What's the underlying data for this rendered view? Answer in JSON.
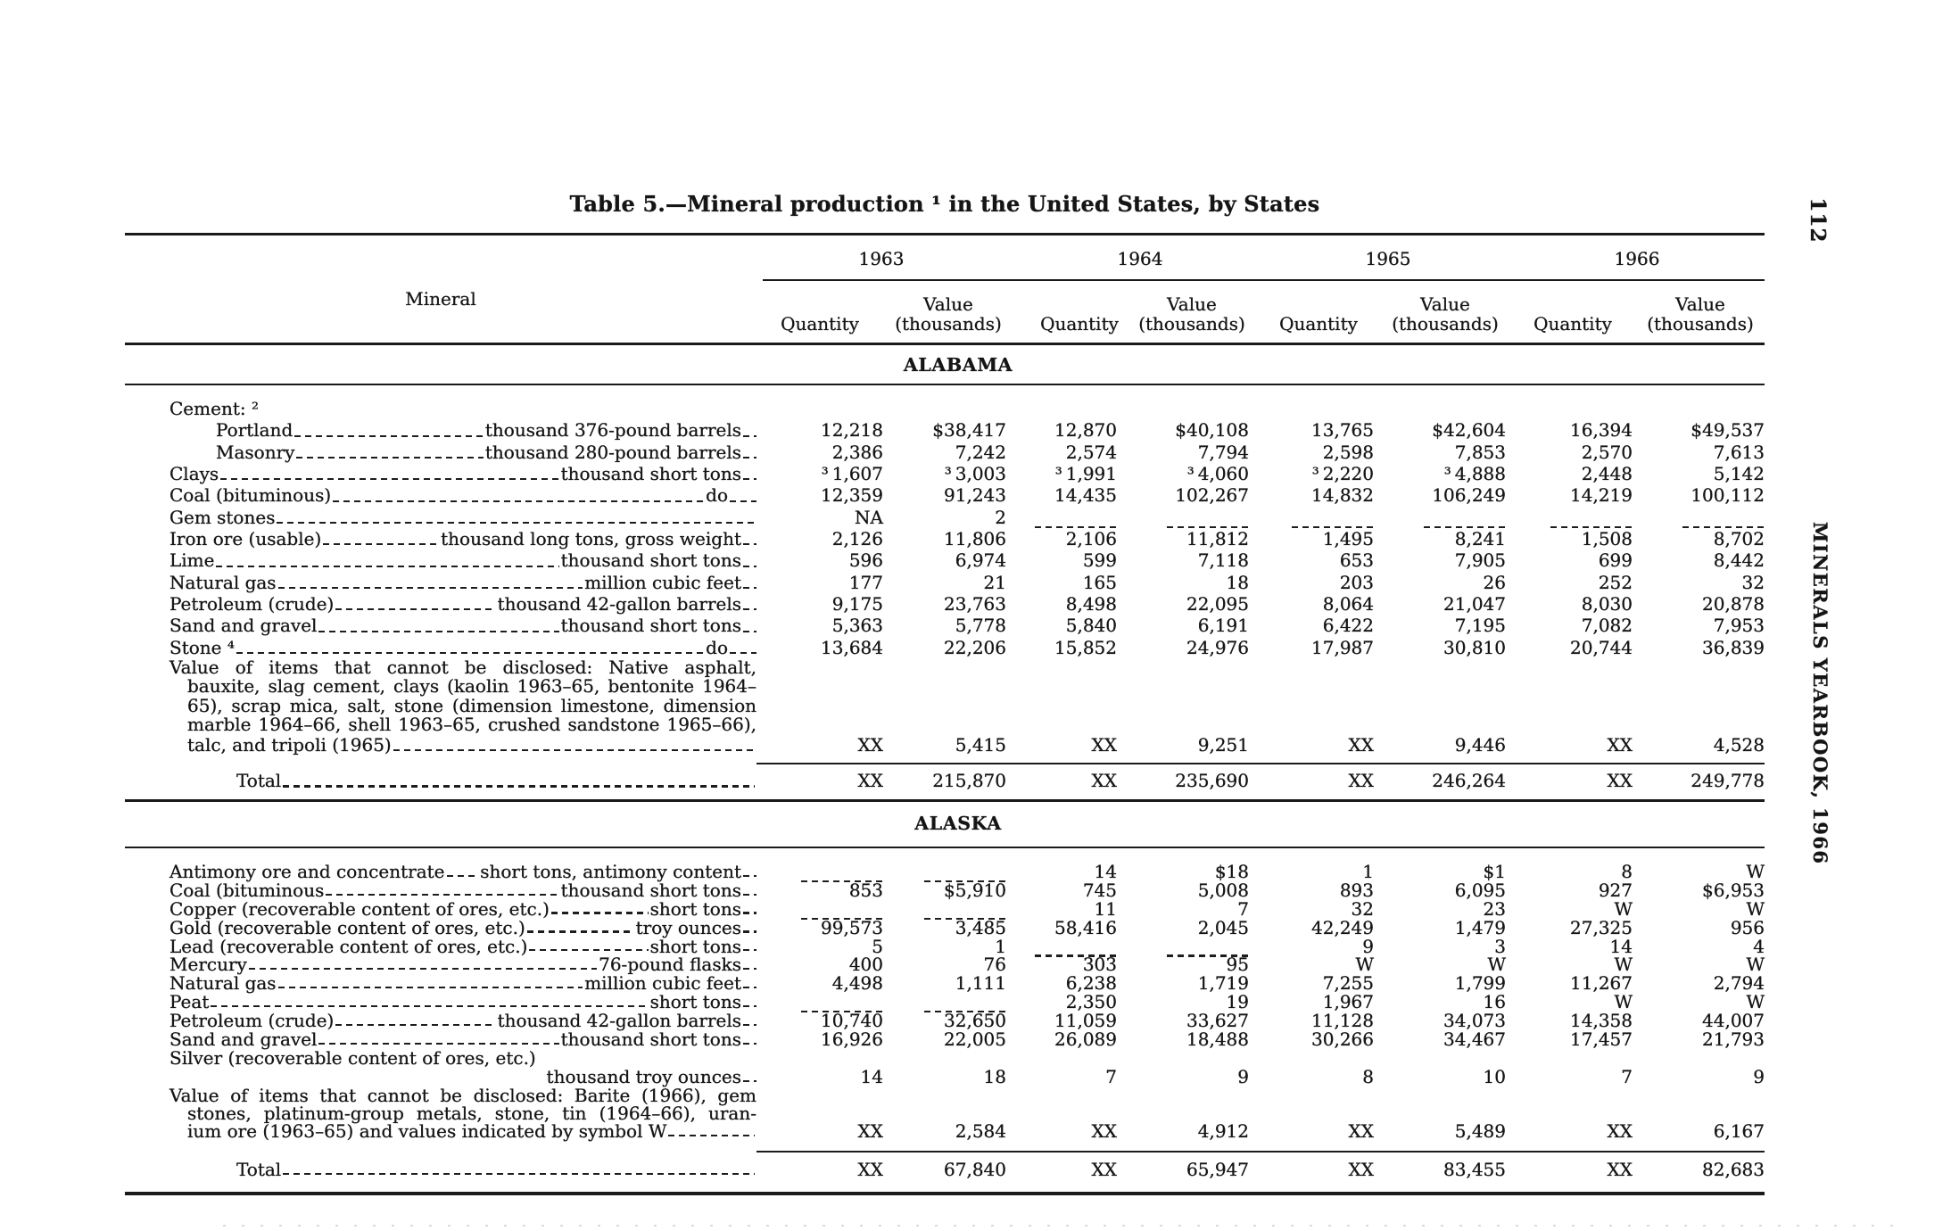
{
  "page": {
    "title": "Table 5.—Mineral production ¹ in the United States, by States",
    "page_number": "112",
    "running_footer": "MINERALS YEARBOOK, 1966"
  },
  "table": {
    "stub_header": "Mineral",
    "years": [
      "1963",
      "1964",
      "1965",
      "1966"
    ],
    "quantity_header": "Quantity",
    "value_header_line1": "Value",
    "value_header_line2": "(thousands)",
    "sections": [
      {
        "name": "ALABAMA",
        "rows": [
          {
            "label": "Cement: ²",
            "leader": "none"
          },
          {
            "label": "Portland",
            "indent": 52,
            "unit": "thousand 376-pound barrels",
            "tail": "..",
            "cells": [
              "12,218",
              "$38,417",
              "12,870",
              "$40,108",
              "13,765",
              "$42,604",
              "16,394",
              "$49,537"
            ]
          },
          {
            "label": "Masonry",
            "indent": 52,
            "unit": "thousand 280-pound barrels",
            "tail": "..",
            "cells": [
              "2,386",
              "7,242",
              "2,574",
              "7,794",
              "2,598",
              "7,853",
              "2,570",
              "7,613"
            ]
          },
          {
            "label": "Clays",
            "unit": "thousand short tons",
            "tail": "..",
            "cells": [
              "³ 1,607",
              "³ 3,003",
              "³ 1,991",
              "³ 4,060",
              "³ 2,220",
              "³ 4,888",
              "2,448",
              "5,142"
            ]
          },
          {
            "label": "Coal (bituminous)",
            "unit": "do",
            "tail": "----",
            "cells": [
              "12,359",
              "91,243",
              "14,435",
              "102,267",
              "14,832",
              "106,249",
              "14,219",
              "100,112"
            ]
          },
          {
            "label": "Gem stones",
            "cells": [
              "NA",
              "2",
              "----------",
              "----------",
              "----------",
              "----------",
              "----------",
              "----------"
            ]
          },
          {
            "label": "Iron ore (usable)",
            "unit": "thousand long tons, gross weight",
            "tail": "..",
            "cells": [
              "2,126",
              "11,806",
              "2,106",
              "11,812",
              "1,495",
              "8,241",
              "1,508",
              "8,702"
            ]
          },
          {
            "label": "Lime",
            "unit": "thousand short tons",
            "tail": "..",
            "cells": [
              "596",
              "6,974",
              "599",
              "7,118",
              "653",
              "7,905",
              "699",
              "8,442"
            ]
          },
          {
            "label": "Natural gas",
            "unit": "million cubic feet",
            "tail": "..",
            "cells": [
              "177",
              "21",
              "165",
              "18",
              "203",
              "26",
              "252",
              "32"
            ]
          },
          {
            "label": "Petroleum (crude)",
            "unit": "thousand 42-gallon barrels",
            "tail": "..",
            "cells": [
              "9,175",
              "23,763",
              "8,498",
              "22,095",
              "8,064",
              "21,047",
              "8,030",
              "20,878"
            ]
          },
          {
            "label": "Sand and gravel",
            "unit": "thousand short tons",
            "tail": "..",
            "cells": [
              "5,363",
              "5,778",
              "5,840",
              "6,191",
              "6,422",
              "7,195",
              "7,082",
              "7,953"
            ]
          },
          {
            "label": "Stone ⁴",
            "unit": "do",
            "tail": "----",
            "cells": [
              "13,684",
              "22,206",
              "15,852",
              "24,976",
              "17,987",
              "30,810",
              "20,744",
              "36,839"
            ]
          },
          {
            "kind": "line",
            "justify": true,
            "label": "Value of items that cannot be disclosed: Native asphalt,"
          },
          {
            "kind": "line",
            "justify": true,
            "indent": 20,
            "label": "bauxite, slag cement, clays (kaolin 1963–65, bentonite 1964–"
          },
          {
            "kind": "line",
            "justify": true,
            "indent": 20,
            "label": "65), scrap mica, salt, stone (dimension limestone, dimension"
          },
          {
            "kind": "line",
            "justify": true,
            "indent": 20,
            "label": "marble 1964–66, shell 1963–65, crushed sandstone 1965–66),"
          },
          {
            "label": "talc, and tripoli (1965)",
            "indent": 20,
            "cells": [
              "XX",
              "5,415",
              "XX",
              "9,251",
              "XX",
              "9,446",
              "XX",
              "4,528"
            ]
          },
          {
            "label": "Total",
            "indent": 75,
            "cls": "total",
            "cells": [
              "XX",
              "215,870",
              "XX",
              "235,690",
              "XX",
              "246,264",
              "XX",
              "249,778"
            ]
          }
        ]
      },
      {
        "name": "ALASKA",
        "rows": [
          {
            "label": "Antimony ore and concentrate",
            "unit": "short tons, antimony content",
            "tail": "..",
            "cells": [
              "----------",
              "----------",
              "14",
              "$18",
              "1",
              "$1",
              "8",
              "W"
            ]
          },
          {
            "label": "Coal (bituminous",
            "unit": "thousand short tons",
            "tail": "..",
            "cells": [
              "853",
              "$5,910",
              "745",
              "5,008",
              "893",
              "6,095",
              "927",
              "$6,953"
            ]
          },
          {
            "label": "Copper (recoverable content of ores, etc.)",
            "unit": "short tons",
            "tail": "..",
            "cells": [
              "----------",
              "----------",
              "11",
              "7",
              "32",
              "23",
              "W",
              "W"
            ]
          },
          {
            "label": "Gold (recoverable content of ores, etc.)",
            "unit": "troy ounces",
            "tail": "..",
            "cells": [
              "99,573",
              "3,485",
              "58,416",
              "2,045",
              "42,249",
              "1,479",
              "27,325",
              "956"
            ]
          },
          {
            "label": "Lead (recoverable content of ores, etc.)",
            "unit": "short tons",
            "tail": "..",
            "cells": [
              "5",
              "1",
              "----------",
              "----------",
              "9",
              "3",
              "14",
              "4"
            ]
          },
          {
            "label": "Mercury",
            "unit": "76-pound flasks",
            "tail": "..",
            "cells": [
              "400",
              "76",
              "303",
              "95",
              "W",
              "W",
              "W",
              "W"
            ]
          },
          {
            "label": "Natural gas",
            "unit": "million cubic feet",
            "tail": "..",
            "cells": [
              "4,498",
              "1,111",
              "6,238",
              "1,719",
              "7,255",
              "1,799",
              "11,267",
              "2,794"
            ]
          },
          {
            "label": "Peat",
            "unit": "short tons",
            "tail": "..",
            "cells": [
              "----------",
              "----------",
              "2,350",
              "19",
              "1,967",
              "16",
              "W",
              "W"
            ]
          },
          {
            "label": "Petroleum (crude)",
            "unit": "thousand 42-gallon barrels",
            "tail": "..",
            "cells": [
              "10,740",
              "32,650",
              "11,059",
              "33,627",
              "11,128",
              "34,073",
              "14,358",
              "44,007"
            ]
          },
          {
            "label": "Sand and gravel",
            "unit": "thousand short tons",
            "tail": "..",
            "cells": [
              "16,926",
              "22,005",
              "26,089",
              "18,488",
              "30,266",
              "34,467",
              "17,457",
              "21,793"
            ]
          },
          {
            "label": "Silver (recoverable content of ores, etc.)",
            "leader": "none"
          },
          {
            "label": "",
            "leader": "blank",
            "unit": "thousand troy ounces",
            "tail": "..",
            "cells": [
              "14",
              "18",
              "7",
              "9",
              "8",
              "10",
              "7",
              "9"
            ]
          },
          {
            "kind": "line",
            "justify": true,
            "label": "Value of items that cannot be disclosed: Barite (1966), gem"
          },
          {
            "kind": "line",
            "justify": true,
            "indent": 20,
            "label": "stones, platinum-group metals, stone, tin (1964–66), uran-"
          },
          {
            "label": "ium ore (1963–65) and values indicated by symbol W",
            "indent": 20,
            "cells": [
              "XX",
              "2,584",
              "XX",
              "4,912",
              "XX",
              "5,489",
              "XX",
              "6,167"
            ]
          },
          {
            "label": "Total",
            "indent": 75,
            "cls": "total",
            "cells": [
              "XX",
              "67,840",
              "XX",
              "65,947",
              "XX",
              "83,455",
              "XX",
              "82,683"
            ]
          }
        ]
      }
    ]
  }
}
